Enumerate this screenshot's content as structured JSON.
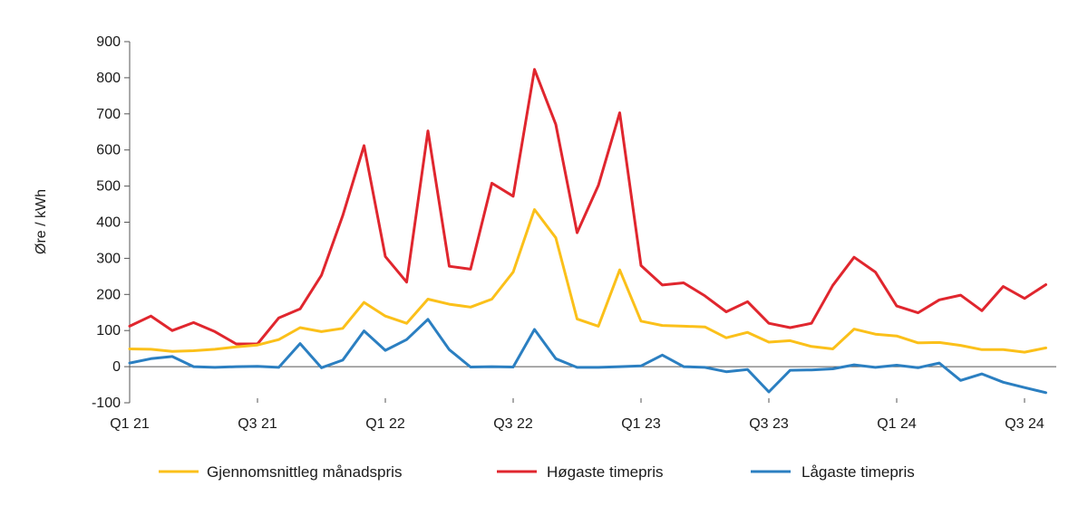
{
  "chart_data": {
    "type": "line",
    "ylabel": "Øre / kWh",
    "xlabel": "",
    "ylim": [
      -100,
      900
    ],
    "yticks": [
      -100,
      0,
      100,
      200,
      300,
      400,
      500,
      600,
      700,
      800,
      900
    ],
    "x_ticks": [
      {
        "label": "Q1 21",
        "index": 0
      },
      {
        "label": "Q3 21",
        "index": 6
      },
      {
        "label": "Q1 22",
        "index": 12
      },
      {
        "label": "Q3 22",
        "index": 18
      },
      {
        "label": "Q1 23",
        "index": 24
      },
      {
        "label": "Q3 23",
        "index": 30
      },
      {
        "label": "Q1 24",
        "index": 36
      },
      {
        "label": "Q3 24",
        "index": 42
      }
    ],
    "grid": false,
    "legend_position": "bottom",
    "series": [
      {
        "name": "Gjennomsnittleg månadspris",
        "color": "#FBC01A",
        "values": [
          49,
          48,
          42,
          44,
          48,
          55,
          60,
          75,
          108,
          97,
          106,
          178,
          140,
          120,
          187,
          173,
          165,
          187,
          262,
          435,
          357,
          132,
          112,
          268,
          126,
          114,
          112,
          110,
          80,
          95,
          68,
          72,
          56,
          49,
          104,
          90,
          85,
          66,
          67,
          59,
          47,
          47,
          40,
          52
        ]
      },
      {
        "name": "Høgaste timepris",
        "color": "#E0262E",
        "values": [
          112,
          140,
          100,
          122,
          97,
          63,
          63,
          135,
          160,
          253,
          418,
          612,
          305,
          234,
          653,
          278,
          270,
          508,
          472,
          823,
          671,
          371,
          502,
          703,
          280,
          226,
          232,
          196,
          152,
          180,
          120,
          108,
          120,
          225,
          303,
          262,
          168,
          149,
          185,
          198,
          155,
          222,
          189,
          227
        ]
      },
      {
        "name": "Lågaste timepris",
        "color": "#2B7FC1",
        "values": [
          10,
          22,
          28,
          0,
          -2,
          0,
          1,
          -2,
          64,
          -3,
          18,
          99,
          45,
          75,
          131,
          47,
          -1,
          0,
          -1,
          103,
          22,
          -2,
          -2,
          0,
          2,
          32,
          0,
          -2,
          -14,
          -8,
          -70,
          -10,
          -9,
          -6,
          5,
          -2,
          4,
          -3,
          10,
          -38,
          -20,
          -43,
          -58,
          -72
        ]
      }
    ]
  }
}
